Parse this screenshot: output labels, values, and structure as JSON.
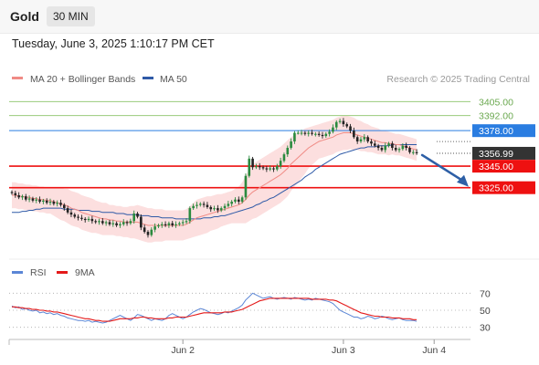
{
  "header": {
    "symbol": "Gold",
    "timeframe": "30 MIN"
  },
  "datetime": "Tuesday, June 3, 2025 1:10:17 PM CET",
  "credit": "Research © 2025 Trading Central",
  "colors": {
    "ma20": "#f08b85",
    "ma50": "#2f5aa7",
    "band_fill": "#fbd9d9",
    "bull": "#2a8a3e",
    "bear": "#222222",
    "support": "#ee1111",
    "pivot": "#2a7de1",
    "resistance_line": "#9acb7b",
    "resistance_text": "#6aa84f",
    "current_bg": "#333333",
    "rsi": "#5b86d6",
    "rsi_ma": "#e41a1a",
    "arrow": "#2d5fa6"
  },
  "chart_data": [
    {
      "type": "candlestick",
      "series": [
        {
          "name": "MA 20 + Bollinger Bands"
        },
        {
          "name": "MA 50"
        }
      ],
      "ylim": [
        3262,
        3418
      ],
      "levels": [
        {
          "label": "3405.00",
          "value": 3405.0,
          "kind": "resistance"
        },
        {
          "label": "3392.00",
          "value": 3392.0,
          "kind": "resistance"
        },
        {
          "label": "3378.00",
          "value": 3378.0,
          "kind": "pivot"
        },
        {
          "label": "3345.00",
          "value": 3345.0,
          "kind": "support"
        },
        {
          "label": "3325.00",
          "value": 3325.0,
          "kind": "support"
        }
      ],
      "current_price": {
        "label": "3356.99",
        "value": 3356.99
      },
      "x_ticks": [
        {
          "label": "Jun 2",
          "index": 49
        },
        {
          "label": "Jun 3",
          "index": 95
        },
        {
          "label": "Jun 4",
          "index": 121
        }
      ],
      "n_slots": 132,
      "closes": [
        3320,
        3318,
        3316,
        3317,
        3314,
        3315,
        3313,
        3314,
        3312,
        3313,
        3311,
        3312,
        3310,
        3311,
        3309,
        3306,
        3302,
        3300,
        3298,
        3297,
        3296,
        3295,
        3296,
        3294,
        3293,
        3294,
        3292,
        3293,
        3291,
        3292,
        3290,
        3291,
        3293,
        3292,
        3294,
        3301,
        3298,
        3288,
        3284,
        3281,
        3286,
        3289,
        3290,
        3291,
        3290,
        3292,
        3290,
        3291,
        3292,
        3293,
        3294,
        3306,
        3308,
        3309,
        3310,
        3309,
        3307,
        3305,
        3306,
        3304,
        3306,
        3308,
        3310,
        3312,
        3314,
        3312,
        3316,
        3336,
        3352,
        3344,
        3345,
        3344,
        3343,
        3342,
        3343,
        3342,
        3345,
        3350,
        3356,
        3362,
        3368,
        3376,
        3376,
        3376,
        3375,
        3376,
        3375,
        3375,
        3374,
        3373,
        3375,
        3377,
        3381,
        3386,
        3387,
        3384,
        3382,
        3378,
        3372,
        3368,
        3370,
        3372,
        3368,
        3366,
        3364,
        3362,
        3360,
        3364,
        3366,
        3362,
        3360,
        3361,
        3364,
        3362,
        3358,
        3358,
        3357
      ],
      "ma20": [
        3318,
        3318,
        3317,
        3317,
        3316,
        3316,
        3315,
        3315,
        3314,
        3314,
        3313,
        3313,
        3312,
        3311,
        3310,
        3309,
        3308,
        3306,
        3305,
        3304,
        3302,
        3301,
        3300,
        3299,
        3298,
        3297,
        3296,
        3296,
        3295,
        3295,
        3294,
        3294,
        3293,
        3293,
        3293,
        3293,
        3293,
        3292,
        3291,
        3290,
        3290,
        3290,
        3290,
        3290,
        3290,
        3290,
        3290,
        3290,
        3290,
        3290,
        3291,
        3293,
        3295,
        3297,
        3298,
        3299,
        3300,
        3301,
        3302,
        3303,
        3304,
        3305,
        3306,
        3307,
        3308,
        3309,
        3311,
        3314,
        3318,
        3321,
        3323,
        3325,
        3327,
        3329,
        3331,
        3333,
        3335,
        3337,
        3340,
        3343,
        3347,
        3350,
        3353,
        3356,
        3359,
        3362,
        3364,
        3366,
        3368,
        3369,
        3370,
        3371,
        3372,
        3374,
        3375,
        3376,
        3376,
        3376,
        3375,
        3374,
        3373,
        3372,
        3371,
        3370,
        3369,
        3368,
        3367,
        3367,
        3366,
        3366,
        3365,
        3365,
        3364,
        3363,
        3362,
        3361,
        3360
      ],
      "ma50": [
        3302,
        3302,
        3302,
        3303,
        3303,
        3304,
        3304,
        3305,
        3305,
        3306,
        3306,
        3306,
        3306,
        3306,
        3306,
        3305,
        3305,
        3305,
        3305,
        3304,
        3304,
        3304,
        3304,
        3303,
        3303,
        3303,
        3302,
        3302,
        3302,
        3302,
        3301,
        3301,
        3301,
        3300,
        3300,
        3300,
        3300,
        3299,
        3299,
        3299,
        3298,
        3298,
        3298,
        3297,
        3297,
        3297,
        3297,
        3296,
        3296,
        3296,
        3296,
        3296,
        3296,
        3296,
        3296,
        3297,
        3297,
        3297,
        3298,
        3298,
        3299,
        3299,
        3300,
        3301,
        3302,
        3303,
        3304,
        3305,
        3306,
        3307,
        3309,
        3310,
        3312,
        3313,
        3315,
        3316,
        3318,
        3320,
        3322,
        3324,
        3326,
        3328,
        3330,
        3332,
        3335,
        3337,
        3339,
        3342,
        3344,
        3346,
        3348,
        3350,
        3352,
        3354,
        3356,
        3357,
        3358,
        3359,
        3360,
        3361,
        3362,
        3362,
        3363,
        3363,
        3363,
        3364,
        3364,
        3364,
        3364,
        3365,
        3365,
        3365,
        3365,
        3365,
        3365,
        3365,
        3365
      ],
      "band_width": [
        12,
        12,
        12,
        12,
        12,
        12,
        12,
        12,
        12,
        12,
        12,
        12,
        13,
        14,
        15,
        15,
        16,
        16,
        16,
        16,
        16,
        16,
        16,
        16,
        15,
        15,
        15,
        15,
        14,
        14,
        14,
        14,
        14,
        14,
        15,
        15,
        16,
        16,
        16,
        16,
        16,
        15,
        15,
        15,
        14,
        14,
        14,
        14,
        14,
        14,
        14,
        15,
        16,
        17,
        17,
        17,
        17,
        16,
        16,
        16,
        15,
        15,
        15,
        15,
        16,
        17,
        19,
        22,
        24,
        25,
        26,
        26,
        26,
        26,
        26,
        26,
        26,
        26,
        26,
        26,
        25,
        24,
        23,
        22,
        21,
        19,
        18,
        17,
        16,
        16,
        16,
        16,
        16,
        16,
        16,
        16,
        16,
        15,
        15,
        14,
        14,
        13,
        13,
        12,
        12,
        12,
        11,
        11,
        11,
        10,
        10,
        10,
        10,
        10,
        10,
        10,
        10
      ],
      "forecast": {
        "from": 3356.99,
        "to": 3325.0
      }
    },
    {
      "type": "line",
      "series": [
        {
          "name": "RSI"
        },
        {
          "name": "9MA"
        }
      ],
      "ylim": [
        20,
        80
      ],
      "y_ticks": [
        70,
        50,
        30
      ],
      "rsi": [
        55,
        53,
        54,
        51,
        52,
        50,
        49,
        50,
        47,
        48,
        46,
        47,
        45,
        46,
        44,
        43,
        41,
        40,
        39,
        38,
        38,
        37,
        38,
        36,
        37,
        36,
        35,
        36,
        38,
        40,
        42,
        44,
        42,
        40,
        38,
        41,
        45,
        44,
        42,
        40,
        38,
        40,
        39,
        38,
        40,
        44,
        46,
        44,
        42,
        40,
        42,
        45,
        48,
        50,
        52,
        51,
        49,
        47,
        46,
        45,
        46,
        48,
        47,
        49,
        51,
        53,
        56,
        62,
        66,
        70,
        68,
        66,
        64,
        65,
        66,
        64,
        63,
        64,
        65,
        64,
        63,
        65,
        64,
        63,
        62,
        63,
        62,
        64,
        63,
        62,
        61,
        60,
        58,
        54,
        50,
        48,
        46,
        44,
        42,
        42,
        40,
        41,
        43,
        42,
        40,
        41,
        43,
        42,
        40,
        39,
        40,
        41,
        39,
        38,
        38,
        38,
        37
      ],
      "rsi_ma": [
        54,
        54,
        53,
        53,
        52,
        52,
        51,
        51,
        50,
        50,
        49,
        49,
        48,
        48,
        47,
        46,
        45,
        44,
        43,
        42,
        41,
        40,
        40,
        39,
        38,
        38,
        37,
        37,
        37,
        38,
        39,
        40,
        40,
        40,
        40,
        41,
        41,
        42,
        42,
        41,
        41,
        40,
        40,
        40,
        40,
        41,
        41,
        42,
        42,
        42,
        42,
        43,
        44,
        45,
        46,
        47,
        47,
        47,
        47,
        47,
        47,
        48,
        48,
        48,
        49,
        50,
        51,
        53,
        55,
        57,
        59,
        61,
        62,
        63,
        64,
        64,
        64,
        64,
        64,
        64,
        64,
        64,
        64,
        64,
        64,
        64,
        63,
        63,
        63,
        63,
        63,
        62,
        62,
        61,
        59,
        57,
        55,
        53,
        51,
        49,
        47,
        46,
        45,
        44,
        43,
        43,
        42,
        42,
        42,
        41,
        41,
        41,
        40,
        40,
        40,
        39,
        39
      ]
    }
  ]
}
